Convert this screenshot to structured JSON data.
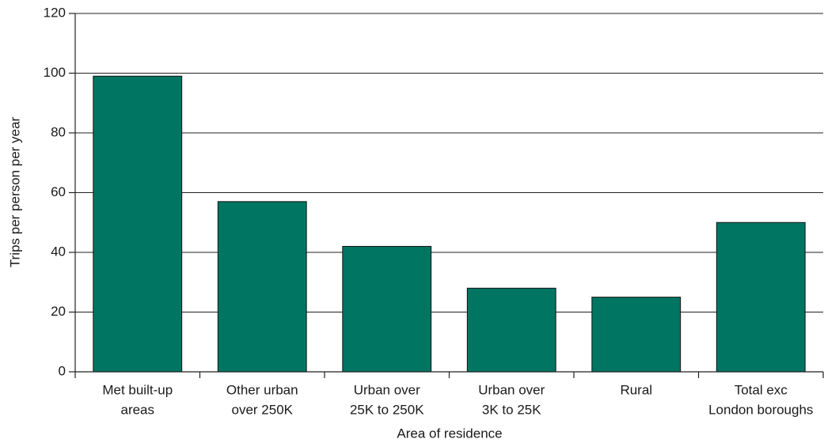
{
  "chart_data": {
    "type": "bar",
    "x_label": "Area of residence",
    "y_label": "Trips per person per year",
    "categories": [
      [
        "Met built-up",
        "areas"
      ],
      [
        "Other urban",
        "over 250K"
      ],
      [
        "Urban over",
        "25K to 250K"
      ],
      [
        "Urban over",
        "3K to 25K"
      ],
      [
        "Rural"
      ],
      [
        "Total exc",
        "London boroughs"
      ]
    ],
    "values": [
      99,
      57,
      42,
      28,
      25,
      50
    ],
    "color": "#007562",
    "ylim": [
      0,
      120
    ],
    "yticks": [
      0,
      20,
      40,
      60,
      80,
      100,
      120
    ],
    "grid": true
  }
}
